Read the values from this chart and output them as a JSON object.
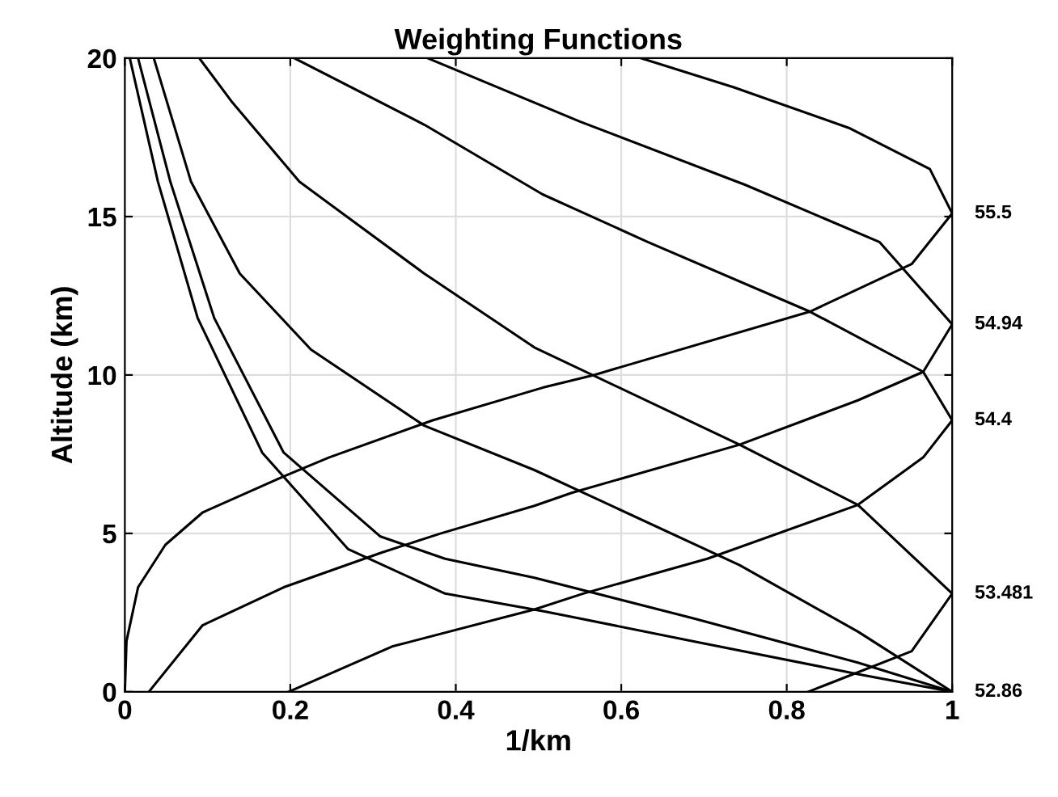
{
  "chart_data": {
    "type": "line",
    "title": "Weighting Functions",
    "xlabel": "1/km",
    "ylabel": "Altitude (km)",
    "xlim": [
      0,
      1
    ],
    "ylim": [
      0,
      20
    ],
    "xticks": [
      0,
      0.2,
      0.4,
      0.6,
      0.8,
      1
    ],
    "yticks": [
      0,
      5,
      10,
      15,
      20
    ],
    "grid": true,
    "marker": "none",
    "line_style": "solid",
    "series": [
      {
        "name": "55.5",
        "color": "#000000",
        "x": [
          0,
          0.002,
          0.016,
          0.049,
          0.094,
          0.192,
          0.247,
          0.372,
          0.505,
          0.567,
          0.828,
          0.951,
          1,
          0.973,
          0.875,
          0.736,
          0.624
        ],
        "values": [
          0,
          1.6,
          3.3,
          4.64,
          5.66,
          6.8,
          7.4,
          8.57,
          9.6,
          10.0,
          12.0,
          13.5,
          15.1,
          16.5,
          17.8,
          19.08,
          20
        ]
      },
      {
        "name": "54.94",
        "color": "#000000",
        "x": [
          0.029,
          0.094,
          0.192,
          0.31,
          0.382,
          0.495,
          0.54,
          0.743,
          0.886,
          0.965,
          1,
          0.912,
          0.75,
          0.55,
          0.366
        ],
        "values": [
          0,
          2.1,
          3.3,
          4.39,
          5.0,
          5.87,
          6.28,
          7.8,
          9.2,
          10.1,
          11.6,
          14.2,
          16.0,
          18.0,
          20
        ]
      },
      {
        "name": "54.4",
        "color": "#000000",
        "x": [
          0.198,
          0.323,
          0.495,
          0.554,
          0.704,
          0.886,
          0.965,
          1,
          0.965,
          0.828,
          0.632,
          0.505,
          0.362,
          0.205
        ],
        "values": [
          0,
          1.43,
          2.6,
          3.1,
          4.2,
          5.9,
          7.4,
          8.57,
          10.1,
          12.0,
          14.2,
          15.7,
          17.9,
          20
        ]
      },
      {
        "name": "53.481",
        "color": "#000000",
        "x": [
          0.826,
          0.951,
          1,
          0.886,
          0.743,
          0.495,
          0.362,
          0.211,
          0.13,
          0.09
        ],
        "values": [
          0,
          1.28,
          3.1,
          5.9,
          7.8,
          10.87,
          13.2,
          16.1,
          18.6,
          20
        ]
      },
      {
        "name": "52.86",
        "color": "#000000",
        "x": [
          1,
          0.886,
          0.743,
          0.495,
          0.362,
          0.225,
          0.139,
          0.08,
          0.035
        ],
        "values": [
          0,
          1.9,
          4.0,
          7.0,
          8.4,
          10.8,
          13.2,
          16.1,
          20
        ]
      },
      {
        "color": "#000000",
        "x": [
          1,
          0.886,
          0.69,
          0.495,
          0.387,
          0.309,
          0.192,
          0.108,
          0.055,
          0.016
        ],
        "values": [
          0,
          0.92,
          2.3,
          3.6,
          4.2,
          4.9,
          7.55,
          11.8,
          16.1,
          20
        ]
      },
      {
        "color": "#000000",
        "x": [
          1,
          0.886,
          0.69,
          0.505,
          0.387,
          0.27,
          0.166,
          0.088,
          0.04,
          0.006
        ],
        "values": [
          0,
          0.56,
          1.58,
          2.55,
          3.1,
          4.5,
          7.55,
          11.8,
          16.1,
          20
        ]
      }
    ]
  }
}
